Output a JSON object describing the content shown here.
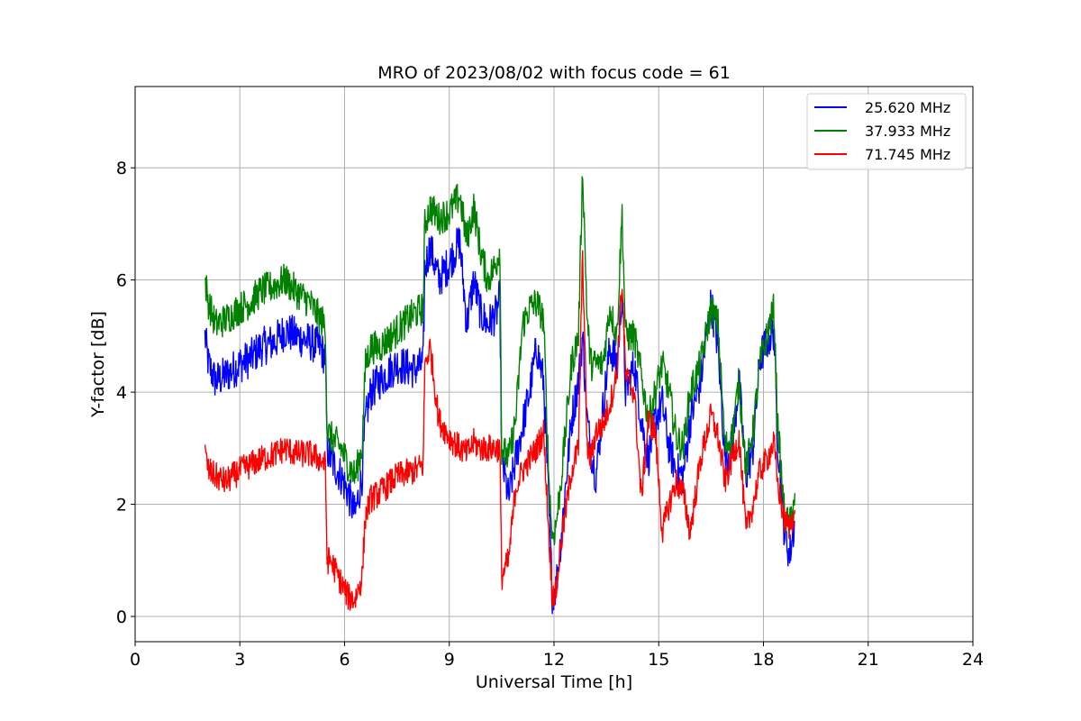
{
  "chart_data": {
    "type": "line",
    "title": "MRO of 2023/08/02 with focus code = 61",
    "xlabel": "Universal Time [h]",
    "ylabel": "Y-factor [dB]",
    "xlim": [
      0,
      24
    ],
    "ylim": [
      -0.45,
      9.45
    ],
    "xticks": [
      0,
      3,
      6,
      9,
      12,
      15,
      18,
      21,
      24
    ],
    "yticks": [
      0,
      2,
      4,
      6,
      8
    ],
    "grid": true,
    "legend_position": "top-right",
    "series": [
      {
        "name": "25.620 MHz",
        "color": "#0000ff",
        "noise": 0.35,
        "x": [
          2.0,
          2.1,
          2.3,
          2.6,
          3.0,
          3.3,
          3.6,
          4.0,
          4.3,
          4.6,
          5.0,
          5.3,
          5.45,
          5.5,
          5.6,
          5.9,
          6.1,
          6.3,
          6.5,
          6.6,
          6.75,
          7.0,
          7.5,
          8.0,
          8.25,
          8.3,
          8.45,
          8.7,
          9.0,
          9.3,
          9.5,
          9.7,
          9.9,
          10.1,
          10.35,
          10.45,
          10.5,
          10.7,
          10.9,
          11.1,
          11.3,
          11.5,
          11.7,
          11.85,
          11.95,
          12.05,
          12.2,
          12.5,
          12.7,
          12.82,
          12.95,
          13.05,
          13.2,
          13.4,
          13.6,
          13.8,
          13.95,
          14.05,
          14.3,
          14.5,
          14.7,
          14.9,
          15.1,
          15.3,
          15.5,
          15.7,
          15.9,
          16.2,
          16.5,
          16.7,
          16.9,
          17.1,
          17.3,
          17.5,
          17.7,
          17.9,
          18.1,
          18.3,
          18.4,
          18.6,
          18.75,
          18.9
        ],
        "y": [
          5.0,
          4.5,
          4.2,
          4.3,
          4.5,
          4.6,
          4.8,
          4.9,
          5.1,
          5.0,
          4.9,
          4.8,
          4.6,
          3.0,
          2.8,
          2.5,
          2.2,
          1.8,
          2.5,
          3.5,
          4.0,
          4.2,
          4.5,
          4.4,
          4.5,
          6.2,
          6.6,
          6.0,
          6.3,
          6.7,
          5.2,
          6.0,
          5.4,
          5.2,
          5.4,
          5.7,
          2.8,
          2.1,
          2.8,
          3.4,
          4.0,
          4.8,
          4.2,
          2.0,
          0.4,
          0.5,
          1.4,
          3.5,
          4.2,
          5.0,
          3.5,
          3.0,
          2.5,
          3.7,
          4.8,
          4.5,
          5.8,
          4.0,
          4.5,
          3.5,
          2.8,
          3.5,
          3.8,
          3.0,
          2.6,
          2.5,
          3.5,
          4.2,
          5.6,
          4.8,
          2.8,
          3.0,
          4.2,
          2.5,
          3.0,
          4.6,
          4.9,
          5.1,
          3.2,
          1.5,
          1.1,
          1.7
        ]
      },
      {
        "name": "37.933 MHz",
        "color": "#008000",
        "noise": 0.3,
        "x": [
          2.0,
          2.1,
          2.3,
          2.6,
          3.0,
          3.3,
          3.6,
          4.0,
          4.3,
          4.6,
          5.0,
          5.3,
          5.45,
          5.5,
          5.6,
          5.9,
          6.1,
          6.3,
          6.5,
          6.6,
          6.75,
          7.0,
          7.5,
          8.0,
          8.25,
          8.3,
          8.45,
          8.7,
          9.0,
          9.3,
          9.5,
          9.7,
          9.9,
          10.1,
          10.35,
          10.45,
          10.5,
          10.7,
          10.9,
          11.1,
          11.3,
          11.5,
          11.7,
          11.85,
          11.95,
          12.05,
          12.2,
          12.5,
          12.7,
          12.82,
          12.95,
          13.05,
          13.2,
          13.4,
          13.6,
          13.8,
          13.95,
          14.05,
          14.3,
          14.5,
          14.7,
          14.9,
          15.1,
          15.3,
          15.5,
          15.7,
          15.9,
          16.2,
          16.5,
          16.7,
          16.9,
          17.1,
          17.3,
          17.5,
          17.7,
          17.9,
          18.1,
          18.3,
          18.4,
          18.6,
          18.75,
          18.9
        ],
        "y": [
          6.0,
          5.6,
          5.2,
          5.3,
          5.5,
          5.6,
          5.8,
          5.9,
          6.0,
          5.8,
          5.6,
          5.3,
          5.2,
          3.3,
          3.2,
          3.0,
          2.7,
          2.5,
          3.0,
          4.5,
          4.8,
          4.8,
          5.1,
          5.4,
          5.5,
          7.0,
          7.3,
          7.1,
          7.2,
          7.5,
          6.7,
          7.3,
          6.5,
          6.0,
          6.3,
          6.6,
          3.0,
          2.8,
          3.5,
          5.2,
          5.5,
          5.6,
          5.3,
          2.5,
          1.4,
          1.6,
          2.4,
          4.5,
          5.0,
          8.0,
          5.3,
          4.5,
          4.5,
          4.5,
          5.5,
          5.0,
          7.2,
          5.0,
          5.0,
          4.3,
          3.5,
          4.0,
          4.5,
          4.0,
          3.2,
          3.0,
          4.0,
          4.5,
          5.5,
          5.2,
          3.0,
          3.2,
          4.2,
          2.6,
          3.3,
          4.5,
          5.0,
          5.5,
          3.5,
          1.8,
          1.6,
          2.2
        ]
      },
      {
        "name": "71.745 MHz",
        "color": "#ff0000",
        "noise": 0.25,
        "x": [
          2.0,
          2.1,
          2.3,
          2.6,
          3.0,
          3.3,
          3.6,
          4.0,
          4.3,
          4.6,
          5.0,
          5.3,
          5.45,
          5.5,
          5.6,
          5.9,
          6.1,
          6.3,
          6.5,
          6.6,
          6.75,
          7.0,
          7.5,
          8.0,
          8.25,
          8.3,
          8.45,
          8.7,
          9.0,
          9.3,
          9.5,
          9.7,
          9.9,
          10.1,
          10.35,
          10.45,
          10.5,
          10.7,
          10.9,
          11.1,
          11.3,
          11.5,
          11.7,
          11.85,
          11.95,
          12.05,
          12.2,
          12.5,
          12.7,
          12.82,
          12.95,
          13.05,
          13.2,
          13.4,
          13.6,
          13.8,
          13.95,
          14.05,
          14.3,
          14.5,
          14.7,
          14.9,
          15.1,
          15.3,
          15.5,
          15.7,
          15.9,
          16.2,
          16.5,
          16.7,
          16.9,
          17.1,
          17.3,
          17.5,
          17.7,
          17.9,
          18.1,
          18.3,
          18.4,
          18.6,
          18.75,
          18.9
        ],
        "y": [
          2.9,
          2.6,
          2.5,
          2.4,
          2.6,
          2.7,
          2.8,
          2.9,
          3.0,
          2.9,
          2.9,
          2.8,
          2.7,
          1.0,
          1.0,
          0.6,
          0.35,
          0.3,
          0.7,
          1.8,
          2.1,
          2.2,
          2.5,
          2.6,
          2.7,
          4.5,
          4.8,
          3.5,
          3.2,
          3.0,
          2.9,
          3.1,
          3.0,
          3.0,
          3.0,
          3.0,
          0.7,
          1.0,
          2.3,
          2.6,
          2.8,
          3.0,
          3.3,
          1.5,
          0.4,
          0.4,
          1.3,
          2.6,
          3.0,
          6.5,
          3.0,
          2.8,
          3.3,
          3.4,
          3.8,
          4.3,
          6.0,
          4.3,
          4.0,
          2.1,
          3.5,
          3.3,
          1.5,
          2.0,
          2.4,
          2.2,
          1.5,
          2.8,
          3.6,
          3.2,
          2.4,
          2.8,
          3.2,
          1.5,
          2.0,
          2.6,
          2.8,
          3.1,
          2.4,
          1.7,
          1.6,
          1.9
        ]
      }
    ]
  }
}
